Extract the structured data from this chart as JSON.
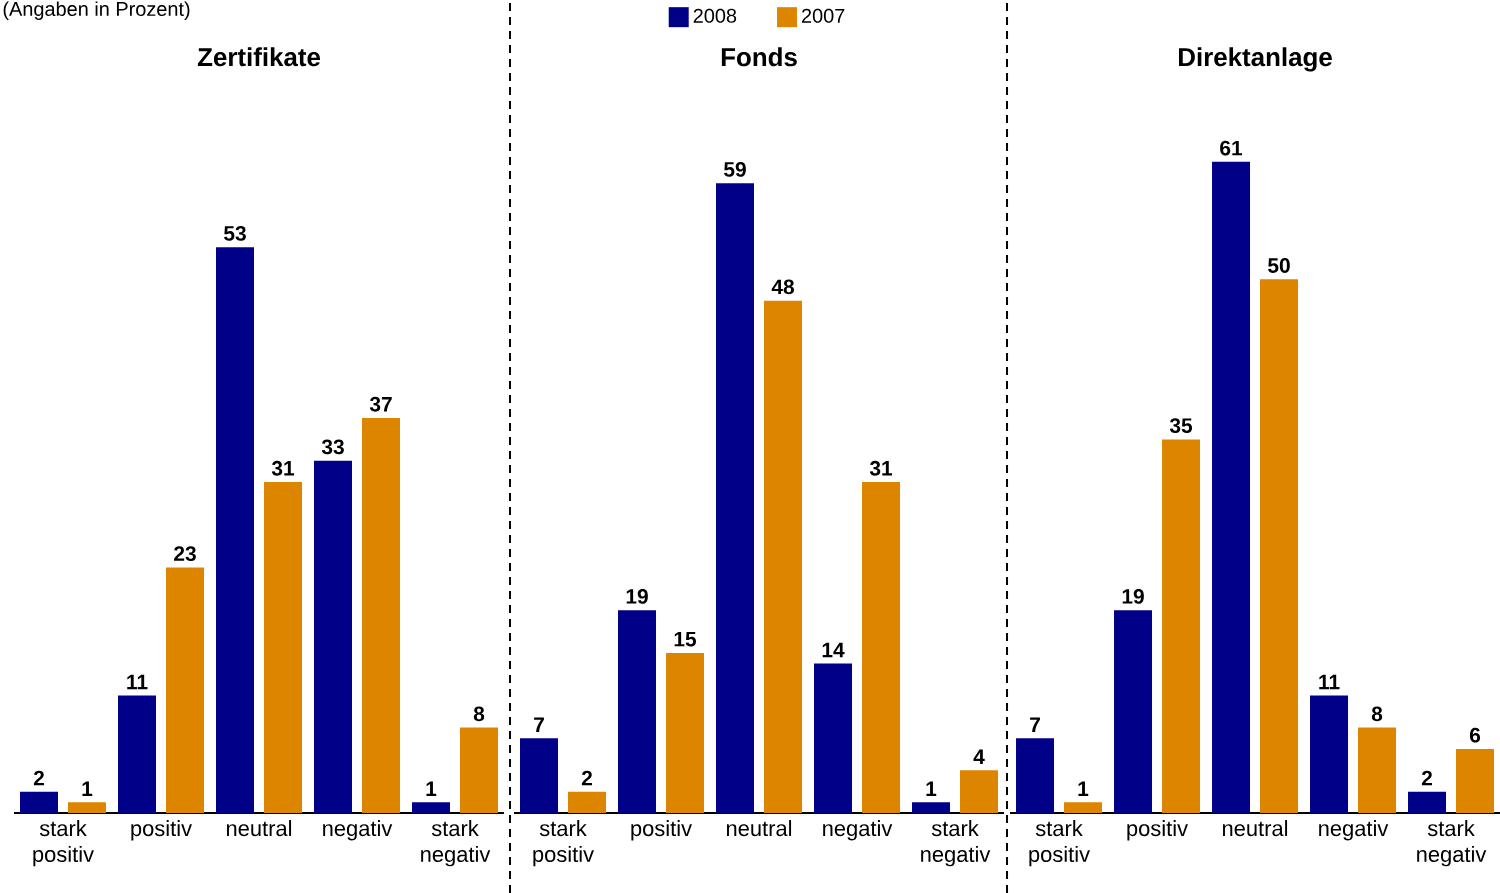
{
  "chart_data": [
    {
      "type": "bar",
      "title": "Zertifikate",
      "categories": [
        "stark positiv",
        "positiv",
        "neutral",
        "negativ",
        "stark negativ"
      ],
      "series": [
        {
          "color": "#000088",
          "values": [
            2,
            11,
            53,
            33,
            1
          ]
        },
        {
          "color": "#de8500",
          "values": [
            1,
            23,
            31,
            37,
            8
          ]
        }
      ],
      "data_labels": true,
      "annotations": [
        "(Angaben in Prozent)"
      ]
    },
    {
      "type": "bar",
      "title": "Fonds",
      "categories": [
        "stark positiv",
        "positiv",
        "neutral",
        "negativ",
        "stark negativ"
      ],
      "series": [
        {
          "name": "2008",
          "color": "#000088",
          "values": [
            7,
            19,
            59,
            14,
            1
          ]
        },
        {
          "name": "2007",
          "color": "#de8500",
          "values": [
            2,
            15,
            48,
            31,
            4
          ]
        }
      ],
      "data_labels": true,
      "legend": "top"
    },
    {
      "type": "bar",
      "title": "Direktanlage",
      "categories": [
        "stark positiv",
        "positiv",
        "neutral",
        "negativ",
        "stark negativ"
      ],
      "series": [
        {
          "color": "#000088",
          "values": [
            7,
            19,
            61,
            11,
            2
          ]
        },
        {
          "color": "#de8500",
          "values": [
            1,
            35,
            50,
            8,
            6
          ]
        }
      ],
      "data_labels": true
    }
  ]
}
